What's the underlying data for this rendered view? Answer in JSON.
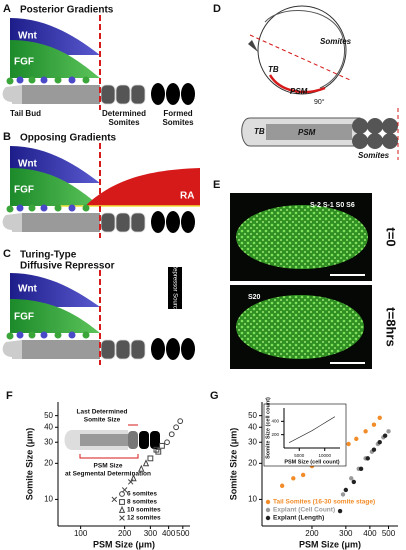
{
  "panels": {
    "A": {
      "letter": "A",
      "title": "Posterior Gradients",
      "wnt": "Wnt",
      "fgf": "FGF",
      "tail_bud": "Tail Bud",
      "determined": [
        "Determined",
        "Somites"
      ],
      "formed": [
        "Formed",
        "Somites"
      ]
    },
    "B": {
      "letter": "B",
      "title": "Opposing Gradients",
      "wnt": "Wnt",
      "fgf": "FGF",
      "ra": "RA"
    },
    "C": {
      "letter": "C",
      "title": [
        "Turing-Type",
        "Diffusive Repressor"
      ],
      "wnt": "Wnt",
      "fgf": "FGF",
      "repressor": "Repressor Source"
    },
    "D": {
      "letter": "D",
      "top": {
        "somites": "Somites",
        "tb": "TB",
        "psm": "PSM"
      },
      "angle": "90°",
      "bottom": {
        "tb": "TB",
        "psm": "PSM",
        "somites": "Somites"
      }
    },
    "E": {
      "letter": "E",
      "rows": [
        {
          "time": "t=0",
          "somites": "S-2 S-1 S0 S6"
        },
        {
          "time": "t=8hrs",
          "somites": "S20"
        }
      ]
    },
    "F": {
      "type": "scatter",
      "letter": "F",
      "xlabel": "PSM Size (μm)",
      "ylabel": "Somite Size (μm)",
      "log_scale": true,
      "xlim": [
        70,
        560
      ],
      "ylim": [
        6,
        65
      ],
      "xticks": [
        100,
        200,
        300,
        400,
        500
      ],
      "yticks": [
        10,
        20,
        30,
        40,
        50
      ],
      "legend": "lower right",
      "inset_labels": [
        "Last Determined",
        "Somite Size",
        "PSM Size",
        "at Segmental Determination"
      ],
      "series": [
        {
          "name": "6 somites",
          "marker": "circle",
          "color": "#444444",
          "x": [
            390,
            420,
            450,
            480
          ],
          "values": [
            30,
            35,
            40,
            45
          ]
        },
        {
          "name": "8 somites",
          "marker": "square",
          "color": "#444444",
          "x": [
            300,
            330,
            340,
            360
          ],
          "values": [
            22,
            26,
            25,
            28
          ]
        },
        {
          "name": "10 somites",
          "marker": "triangle",
          "color": "#444444",
          "x": [
            230,
            260,
            280
          ],
          "values": [
            15,
            18,
            20
          ]
        },
        {
          "name": "12 somites",
          "marker": "cross",
          "color": "#444444",
          "x": [
            170,
            200,
            220
          ],
          "values": [
            10,
            12,
            14
          ]
        }
      ]
    },
    "G": {
      "type": "scatter",
      "letter": "G",
      "xlabel": "PSM Size (μm)",
      "ylabel": "Somite Size (μm)",
      "log_scale": true,
      "xlim": [
        110,
        560
      ],
      "ylim": [
        6,
        65
      ],
      "xticks": [
        200,
        300,
        400,
        500
      ],
      "yticks": [
        10,
        20,
        30,
        40,
        50
      ],
      "legend": "lower left",
      "series": [
        {
          "name": "Tail Somites (16-30 somite stage)",
          "marker": "dot",
          "color": "#f28c28",
          "x": [
            140,
            160,
            180,
            200,
            220,
            250,
            280,
            310,
            340,
            380,
            420,
            450
          ],
          "values": [
            13,
            15,
            16,
            19,
            21,
            24,
            26,
            29,
            32,
            37,
            42,
            48
          ]
        },
        {
          "name": "Explant (Cell Count)",
          "marker": "dot",
          "color": "#999999",
          "x": [
            290,
            320,
            350,
            380,
            410,
            440,
            470,
            500
          ],
          "values": [
            11,
            15,
            18,
            22,
            25,
            29,
            33,
            37
          ]
        },
        {
          "name": "Explant (Length)",
          "marker": "dot",
          "color": "#222222",
          "x": [
            280,
            300,
            330,
            360,
            390,
            420,
            450,
            480
          ],
          "values": [
            8,
            12,
            14,
            18,
            22,
            26,
            30,
            34
          ]
        }
      ],
      "inset": {
        "xlabel": "PSM Size (cell count)",
        "ylabel": "Somite Size (cell count)",
        "log_scale": false,
        "xlim": [
          2000,
          13000
        ],
        "ylim": [
          0,
          600
        ],
        "xticks": [
          5000,
          10000
        ],
        "yticks": [
          200,
          400
        ],
        "x": [
          3000,
          4500,
          6000,
          7500,
          9000,
          10500,
          12000
        ],
        "values": [
          80,
          140,
          200,
          260,
          330,
          400,
          470
        ]
      }
    }
  }
}
